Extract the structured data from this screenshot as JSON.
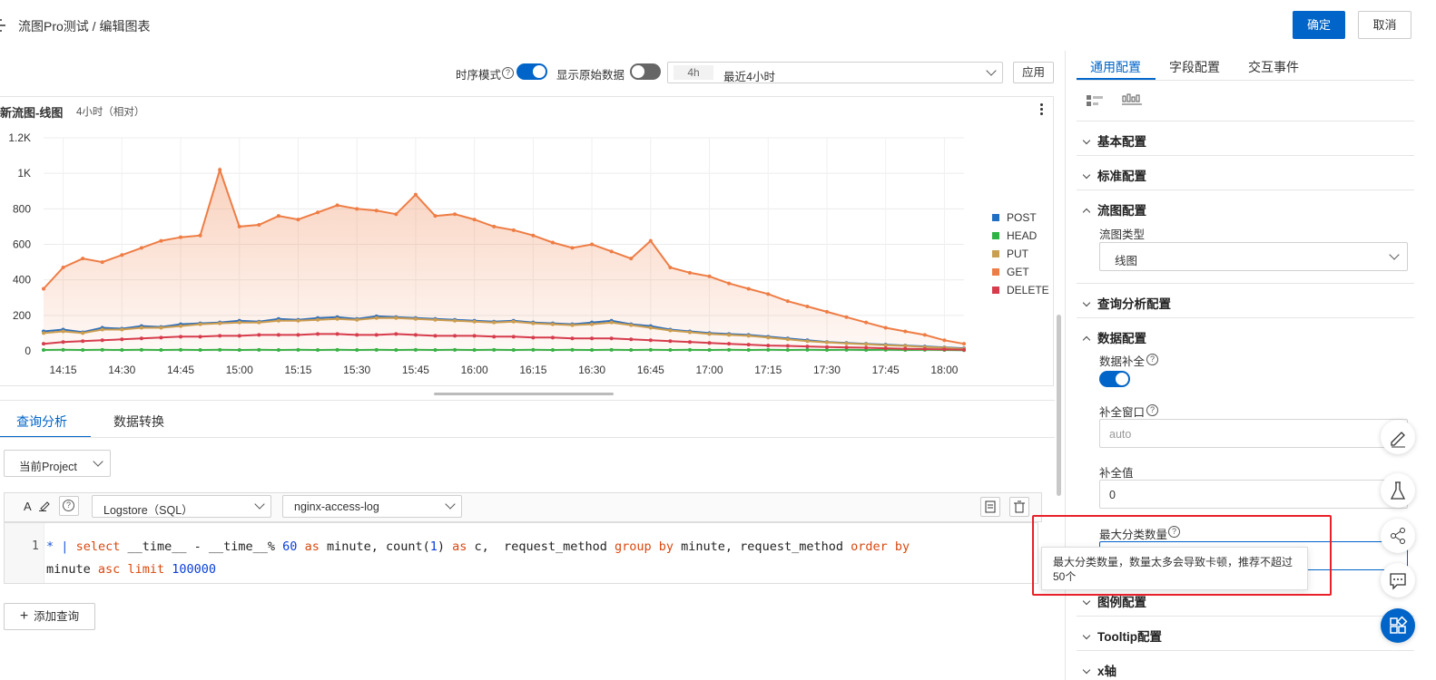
{
  "header": {
    "breadcrumb": "流图Pro测试 / 编辑图表",
    "confirm_label": "确定",
    "cancel_label": "取消"
  },
  "toolbar": {
    "time_series_mode_label": "时序模式",
    "time_series_mode_on": true,
    "show_raw_data_label": "显示原始数据",
    "show_raw_data_on": false,
    "time_range_short": "4h",
    "time_range_label": "最近4小时",
    "apply_label": "应用"
  },
  "chart": {
    "title": "新流图-线图",
    "subtitle": "4小时（相对）"
  },
  "chart_data": {
    "type": "area",
    "title": "新流图-线图",
    "x": [
      "14:10",
      "14:15",
      "14:20",
      "14:25",
      "14:30",
      "14:35",
      "14:40",
      "14:45",
      "14:50",
      "14:55",
      "15:00",
      "15:05",
      "15:10",
      "15:15",
      "15:20",
      "15:25",
      "15:30",
      "15:35",
      "15:40",
      "15:45",
      "15:50",
      "15:55",
      "16:00",
      "16:05",
      "16:10",
      "16:15",
      "16:20",
      "16:25",
      "16:30",
      "16:35",
      "16:40",
      "16:45",
      "16:50",
      "16:55",
      "17:00",
      "17:05",
      "17:10",
      "17:15",
      "17:20",
      "17:25",
      "17:30",
      "17:35",
      "17:40",
      "17:45",
      "17:50",
      "17:55",
      "18:00",
      "18:05"
    ],
    "x_ticks": [
      "14:15",
      "14:30",
      "14:45",
      "15:00",
      "15:15",
      "15:30",
      "15:45",
      "16:00",
      "16:15",
      "16:30",
      "16:45",
      "17:00",
      "17:15",
      "17:30",
      "17:45",
      "18:00"
    ],
    "y_ticks": [
      "0",
      "200",
      "400",
      "600",
      "800",
      "1K",
      "1.2K"
    ],
    "ylim": [
      0,
      1200
    ],
    "legend_position": "right",
    "series": [
      {
        "name": "POST",
        "color": "#1f6fc5",
        "values": [
          110,
          120,
          105,
          130,
          125,
          140,
          135,
          150,
          155,
          160,
          170,
          165,
          180,
          175,
          185,
          190,
          180,
          195,
          190,
          185,
          180,
          175,
          170,
          165,
          170,
          160,
          155,
          150,
          160,
          170,
          150,
          140,
          120,
          110,
          100,
          95,
          90,
          80,
          70,
          60,
          50,
          45,
          40,
          35,
          30,
          25,
          20,
          15
        ]
      },
      {
        "name": "HEAD",
        "color": "#2fb344",
        "values": [
          5,
          6,
          5,
          6,
          5,
          6,
          5,
          6,
          5,
          6,
          5,
          6,
          5,
          6,
          5,
          6,
          5,
          6,
          5,
          6,
          5,
          6,
          5,
          6,
          5,
          6,
          5,
          6,
          5,
          6,
          5,
          6,
          5,
          6,
          5,
          6,
          5,
          6,
          5,
          6,
          5,
          6,
          5,
          6,
          5,
          6,
          5,
          4
        ]
      },
      {
        "name": "PUT",
        "color": "#c9a050",
        "values": [
          100,
          110,
          100,
          120,
          120,
          130,
          130,
          140,
          150,
          155,
          160,
          160,
          170,
          170,
          175,
          180,
          175,
          185,
          185,
          180,
          175,
          170,
          165,
          160,
          165,
          155,
          150,
          145,
          150,
          160,
          145,
          130,
          115,
          105,
          95,
          90,
          85,
          75,
          65,
          55,
          48,
          42,
          38,
          32,
          28,
          22,
          18,
          12
        ]
      },
      {
        "name": "GET",
        "color": "#ee7d45",
        "values": [
          350,
          470,
          520,
          500,
          540,
          580,
          620,
          640,
          650,
          1020,
          700,
          710,
          760,
          740,
          780,
          820,
          800,
          790,
          770,
          880,
          760,
          770,
          740,
          700,
          680,
          650,
          610,
          580,
          600,
          560,
          520,
          620,
          470,
          440,
          420,
          380,
          350,
          320,
          280,
          250,
          220,
          190,
          160,
          130,
          110,
          90,
          60,
          40
        ]
      },
      {
        "name": "DELETE",
        "color": "#d63c4c",
        "values": [
          40,
          50,
          55,
          60,
          65,
          70,
          75,
          80,
          80,
          85,
          85,
          90,
          90,
          90,
          95,
          95,
          90,
          90,
          95,
          90,
          85,
          85,
          85,
          80,
          80,
          75,
          75,
          70,
          70,
          70,
          65,
          60,
          55,
          50,
          45,
          40,
          35,
          30,
          28,
          25,
          22,
          20,
          18,
          15,
          12,
          10,
          8,
          6
        ]
      }
    ]
  },
  "query": {
    "tabs": [
      "查询分析",
      "数据转换"
    ],
    "project_select": "当前Project",
    "logstore_select": "Logstore（SQL）",
    "logstore_name": "nginx-access-log",
    "line_number": "1",
    "code_line_1": "* | select __time__ - __time__% 60 as minute, count(1) as c,  request_method group by minute, request_method order by",
    "code_line_2": "minute asc limit 100000",
    "add_query_label": "添加查询"
  },
  "right_panel": {
    "tabs": [
      "通用配置",
      "字段配置",
      "交互事件"
    ],
    "sections": {
      "basic": "基本配置",
      "standard": "标准配置",
      "flow": "流图配置",
      "query_analysis": "查询分析配置",
      "data": "数据配置",
      "legend": "图例配置",
      "tooltip": "Tooltip配置",
      "x_axis": "x轴"
    },
    "flow_type_label": "流图类型",
    "flow_type_value": "线图",
    "fill_data_label": "数据补全",
    "fill_data_on": true,
    "fill_window_label": "补全窗口",
    "fill_window_placeholder": "auto",
    "fill_value_label": "补全值",
    "fill_value": "0",
    "max_category_label": "最大分类数量",
    "max_category_tooltip": "最大分类数量，数量太多会导致卡顿，推荐不超过50个"
  },
  "float_buttons": [
    "edit-icon",
    "flask-icon",
    "share-icon",
    "chat-icon",
    "grid-icon"
  ]
}
